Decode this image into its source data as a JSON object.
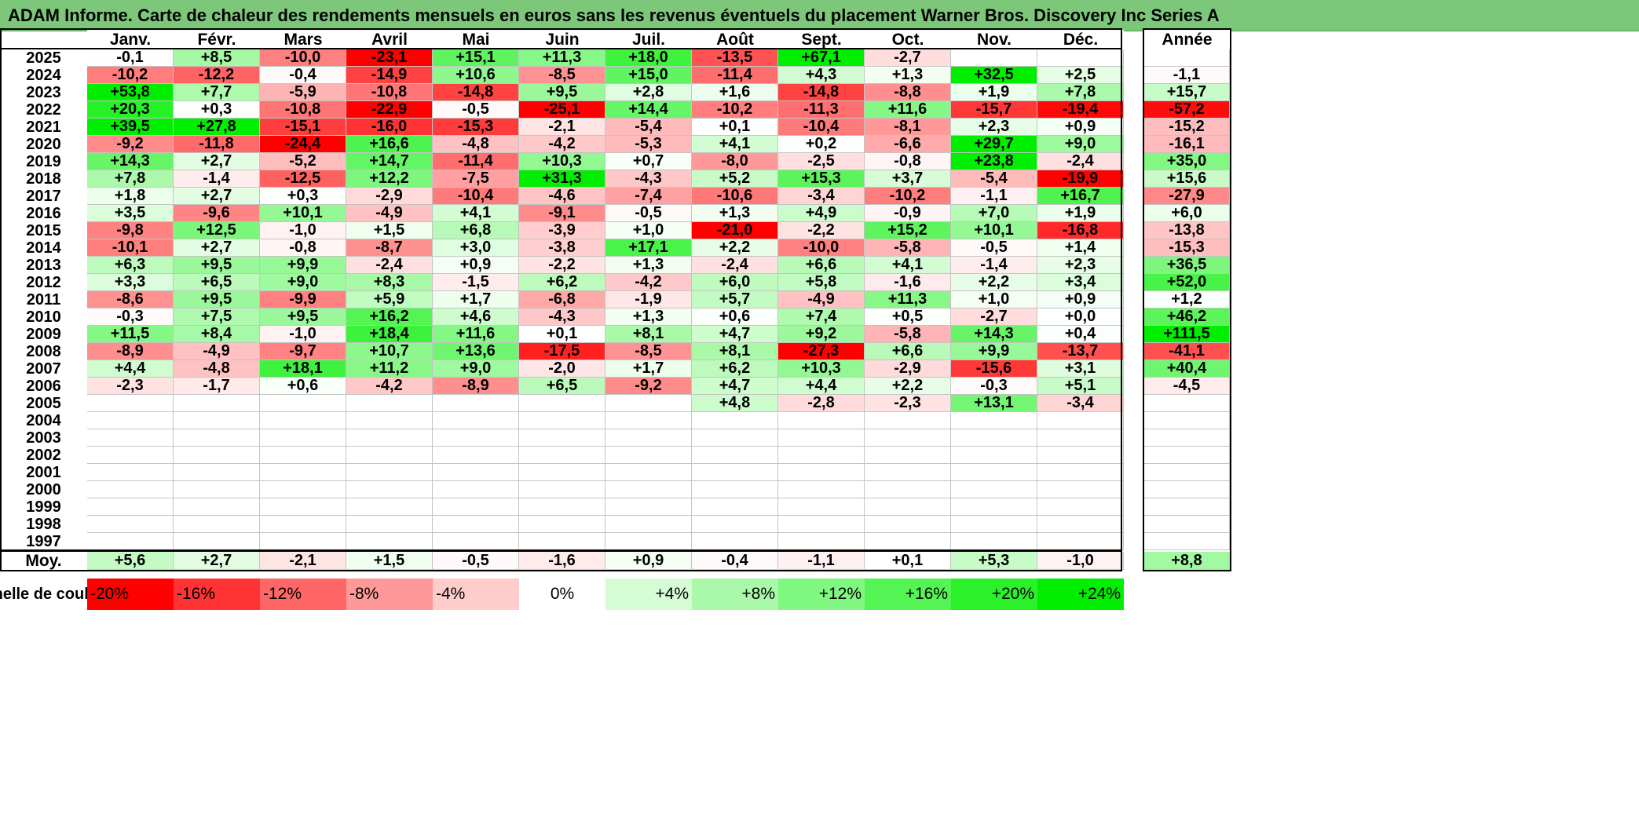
{
  "title": "ADAM Informe. Carte de chaleur des rendements mensuels en euros sans les revenus éventuels du placement Warner Bros. Discovery Inc Series A",
  "chart_data": {
    "type": "heatmap",
    "title": "ADAM Informe. Carte de chaleur des rendements mensuels en euros sans les revenus éventuels du placement Warner Bros. Discovery Inc Series A",
    "columns": [
      "Janv.",
      "Févr.",
      "Mars",
      "Avril",
      "Mai",
      "Juin",
      "Juil.",
      "Août",
      "Sept.",
      "Oct.",
      "Nov.",
      "Déc."
    ],
    "year_column": "Année",
    "rows": [
      {
        "year": "2025",
        "values": [
          "-0,1",
          "+8,5",
          "-10,0",
          "-23,1",
          "+15,1",
          "+11,3",
          "+18,0",
          "-13,5",
          "+67,1",
          "-2,7",
          "",
          ""
        ],
        "annual": ""
      },
      {
        "year": "2024",
        "values": [
          "-10,2",
          "-12,2",
          "-0,4",
          "-14,9",
          "+10,6",
          "-8,5",
          "+15,0",
          "-11,4",
          "+4,3",
          "+1,3",
          "+32,5",
          "+2,5"
        ],
        "annual": "-1,1"
      },
      {
        "year": "2023",
        "values": [
          "+53,8",
          "+7,7",
          "-5,9",
          "-10,8",
          "-14,8",
          "+9,5",
          "+2,8",
          "+1,6",
          "-14,8",
          "-8,8",
          "+1,9",
          "+7,8"
        ],
        "annual": "+15,7"
      },
      {
        "year": "2022",
        "values": [
          "+20,3",
          "+0,3",
          "-10,8",
          "-22,9",
          "-0,5",
          "-25,1",
          "+14,4",
          "-10,2",
          "-11,3",
          "+11,6",
          "-15,7",
          "-19,4"
        ],
        "annual": "-57,2"
      },
      {
        "year": "2021",
        "values": [
          "+39,5",
          "+27,8",
          "-15,1",
          "-16,0",
          "-15,3",
          "-2,1",
          "-5,4",
          "+0,1",
          "-10,4",
          "-8,1",
          "+2,3",
          "+0,9"
        ],
        "annual": "-15,2"
      },
      {
        "year": "2020",
        "values": [
          "-9,2",
          "-11,8",
          "-24,4",
          "+16,6",
          "-4,8",
          "-4,2",
          "-5,3",
          "+4,1",
          "+0,2",
          "-6,6",
          "+29,7",
          "+9,0"
        ],
        "annual": "-16,1"
      },
      {
        "year": "2019",
        "values": [
          "+14,3",
          "+2,7",
          "-5,2",
          "+14,7",
          "-11,4",
          "+10,3",
          "+0,7",
          "-8,0",
          "-2,5",
          "-0,8",
          "+23,8",
          "-2,4"
        ],
        "annual": "+35,0"
      },
      {
        "year": "2018",
        "values": [
          "+7,8",
          "-1,4",
          "-12,5",
          "+12,2",
          "-7,5",
          "+31,3",
          "-4,3",
          "+5,2",
          "+15,3",
          "+3,7",
          "-5,4",
          "-19,9"
        ],
        "annual": "+15,6"
      },
      {
        "year": "2017",
        "values": [
          "+1,8",
          "+2,7",
          "+0,3",
          "-2,9",
          "-10,4",
          "-4,6",
          "-7,4",
          "-10,6",
          "-3,4",
          "-10,2",
          "-1,1",
          "+16,7"
        ],
        "annual": "-27,9"
      },
      {
        "year": "2016",
        "values": [
          "+3,5",
          "-9,6",
          "+10,1",
          "-4,9",
          "+4,1",
          "-9,1",
          "-0,5",
          "+1,3",
          "+4,9",
          "-0,9",
          "+7,0",
          "+1,9"
        ],
        "annual": "+6,0"
      },
      {
        "year": "2015",
        "values": [
          "-9,8",
          "+12,5",
          "-1,0",
          "+1,5",
          "+6,8",
          "-3,9",
          "+1,0",
          "-21,0",
          "-2,2",
          "+15,2",
          "+10,1",
          "-16,8"
        ],
        "annual": "-13,8"
      },
      {
        "year": "2014",
        "values": [
          "-10,1",
          "+2,7",
          "-0,8",
          "-8,7",
          "+3,0",
          "-3,8",
          "+17,1",
          "+2,2",
          "-10,0",
          "-5,8",
          "-0,5",
          "+1,4"
        ],
        "annual": "-15,3"
      },
      {
        "year": "2013",
        "values": [
          "+6,3",
          "+9,5",
          "+9,9",
          "-2,4",
          "+0,9",
          "-2,2",
          "+1,3",
          "-2,4",
          "+6,6",
          "+4,1",
          "-1,4",
          "+2,3"
        ],
        "annual": "+36,5"
      },
      {
        "year": "2012",
        "values": [
          "+3,3",
          "+6,5",
          "+9,0",
          "+8,3",
          "-1,5",
          "+6,2",
          "-4,2",
          "+6,0",
          "+5,8",
          "-1,6",
          "+2,2",
          "+3,4"
        ],
        "annual": "+52,0"
      },
      {
        "year": "2011",
        "values": [
          "-8,6",
          "+9,5",
          "-9,9",
          "+5,9",
          "+1,7",
          "-6,8",
          "-1,9",
          "+5,7",
          "-4,9",
          "+11,3",
          "+1,0",
          "+0,9"
        ],
        "annual": "+1,2"
      },
      {
        "year": "2010",
        "values": [
          "-0,3",
          "+7,5",
          "+9,5",
          "+16,2",
          "+4,6",
          "-4,3",
          "+1,3",
          "+0,6",
          "+7,4",
          "+0,5",
          "-2,7",
          "+0,0"
        ],
        "annual": "+46,2"
      },
      {
        "year": "2009",
        "values": [
          "+11,5",
          "+8,4",
          "-1,0",
          "+18,4",
          "+11,6",
          "+0,1",
          "+8,1",
          "+4,7",
          "+9,2",
          "-5,8",
          "+14,3",
          "+0,4"
        ],
        "annual": "+111,5"
      },
      {
        "year": "2008",
        "values": [
          "-8,9",
          "-4,9",
          "-9,7",
          "+10,7",
          "+13,6",
          "-17,5",
          "-8,5",
          "+8,1",
          "-27,3",
          "+6,6",
          "+9,9",
          "-13,7"
        ],
        "annual": "-41,1"
      },
      {
        "year": "2007",
        "values": [
          "+4,4",
          "-4,8",
          "+18,1",
          "+11,2",
          "+9,0",
          "-2,0",
          "+1,7",
          "+6,2",
          "+10,3",
          "-2,9",
          "-15,6",
          "+3,1"
        ],
        "annual": "+40,4"
      },
      {
        "year": "2006",
        "values": [
          "-2,3",
          "-1,7",
          "+0,6",
          "-4,2",
          "-8,9",
          "+6,5",
          "-9,2",
          "+4,7",
          "+4,4",
          "+2,2",
          "-0,3",
          "+5,1"
        ],
        "annual": "-4,5"
      },
      {
        "year": "2005",
        "values": [
          "",
          "",
          "",
          "",
          "",
          "",
          "",
          "+4,8",
          "-2,8",
          "-2,3",
          "+13,1",
          "-3,4"
        ],
        "annual": ""
      },
      {
        "year": "2004",
        "values": [
          "",
          "",
          "",
          "",
          "",
          "",
          "",
          "",
          "",
          "",
          "",
          ""
        ],
        "annual": ""
      },
      {
        "year": "2003",
        "values": [
          "",
          "",
          "",
          "",
          "",
          "",
          "",
          "",
          "",
          "",
          "",
          ""
        ],
        "annual": ""
      },
      {
        "year": "2002",
        "values": [
          "",
          "",
          "",
          "",
          "",
          "",
          "",
          "",
          "",
          "",
          "",
          ""
        ],
        "annual": ""
      },
      {
        "year": "2001",
        "values": [
          "",
          "",
          "",
          "",
          "",
          "",
          "",
          "",
          "",
          "",
          "",
          ""
        ],
        "annual": ""
      },
      {
        "year": "2000",
        "values": [
          "",
          "",
          "",
          "",
          "",
          "",
          "",
          "",
          "",
          "",
          "",
          ""
        ],
        "annual": ""
      },
      {
        "year": "1999",
        "values": [
          "",
          "",
          "",
          "",
          "",
          "",
          "",
          "",
          "",
          "",
          "",
          ""
        ],
        "annual": ""
      },
      {
        "year": "1998",
        "values": [
          "",
          "",
          "",
          "",
          "",
          "",
          "",
          "",
          "",
          "",
          "",
          ""
        ],
        "annual": ""
      },
      {
        "year": "1997",
        "values": [
          "",
          "",
          "",
          "",
          "",
          "",
          "",
          "",
          "",
          "",
          "",
          ""
        ],
        "annual": ""
      }
    ],
    "average": {
      "label": "Moy.",
      "values": [
        "+5,6",
        "+2,7",
        "-2,1",
        "+1,5",
        "-0,5",
        "-1,6",
        "+0,9",
        "-0,4",
        "-1,1",
        "+0,1",
        "+5,3",
        "-1,0"
      ],
      "annual": "+8,8"
    },
    "legend": {
      "label": "Echelle de couleur",
      "steps": [
        "-20%",
        "-16%",
        "-12%",
        "-8%",
        "-4%",
        "0%",
        "+4%",
        "+8%",
        "+12%",
        "+16%",
        "+20%",
        "+24%"
      ],
      "step_values": [
        -20,
        -16,
        -12,
        -8,
        -4,
        0,
        4,
        8,
        12,
        16,
        20,
        24
      ]
    },
    "colors": {
      "negative_max": "#ff0000",
      "positive_max": "#00ee00",
      "neutral": "#ffffff",
      "title_bg": "#7dc77a"
    }
  }
}
